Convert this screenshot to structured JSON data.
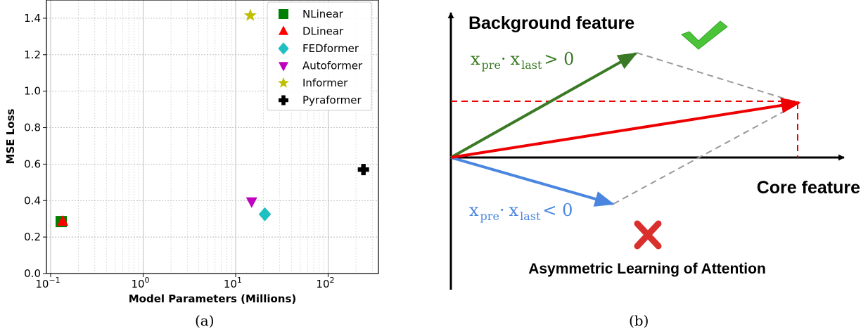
{
  "chart_data": [
    {
      "type": "scatter",
      "xlabel": "Model Parameters (Millions)",
      "ylabel": "MSE Loss",
      "x_scale": "log",
      "xlim": [
        0.09,
        350
      ],
      "ylim": [
        0.0,
        1.5
      ],
      "x_ticks": [
        0.1,
        1,
        10,
        100
      ],
      "x_tick_labels": [
        {
          "base": "10",
          "exp": "−1"
        },
        {
          "base": "10",
          "exp": "0"
        },
        {
          "base": "10",
          "exp": "1"
        },
        {
          "base": "10",
          "exp": "2"
        }
      ],
      "y_ticks": [
        0.0,
        0.2,
        0.4,
        0.6,
        0.8,
        1.0,
        1.2,
        1.4
      ],
      "y_tick_labels": [
        "0.0",
        "0.2",
        "0.4",
        "0.6",
        "0.8",
        "1.0",
        "1.2",
        "1.4"
      ],
      "grid": true,
      "legend_position": "top-right",
      "series": [
        {
          "name": "NLinear",
          "marker": "square",
          "color": "#008000",
          "points": [
            {
              "x": 0.13,
              "y": 0.285
            }
          ]
        },
        {
          "name": "DLinear",
          "marker": "triangle-up",
          "color": "#ff0000",
          "points": [
            {
              "x": 0.135,
              "y": 0.285
            }
          ]
        },
        {
          "name": "FEDformer",
          "marker": "diamond",
          "color": "#1ec1c1",
          "points": [
            {
              "x": 20.7,
              "y": 0.325
            }
          ]
        },
        {
          "name": "Autoformer",
          "marker": "triangle-down",
          "color": "#bf00bf",
          "points": [
            {
              "x": 14.9,
              "y": 0.395
            }
          ]
        },
        {
          "name": "Informer",
          "marker": "star",
          "color": "#bfbf00",
          "points": [
            {
              "x": 14.4,
              "y": 1.415
            }
          ]
        },
        {
          "name": "Pyraformer",
          "marker": "plus",
          "color": "#000000",
          "points": [
            {
              "x": 241,
              "y": 0.57
            }
          ]
        }
      ]
    },
    {
      "type": "diagram",
      "y_axis_label": "Background feature",
      "x_axis_label": "Core feature",
      "bottom_title": "Asymmetric Learning of Attention",
      "positive_label": {
        "a": "x",
        "a_sub": "pre",
        "b": "x",
        "b_sub": "last",
        "op": "> 0"
      },
      "negative_label": {
        "a": "x",
        "a_sub": "pre",
        "b": "x",
        "b_sub": "last",
        "op": "< 0"
      },
      "colors": {
        "positive": "#3a7a24",
        "negative": "#4a86e0",
        "result": "#ee0000",
        "check": "#4cc43a",
        "cross": "#d9302e"
      },
      "check_icon": "check-icon",
      "cross_icon": "cross-icon"
    }
  ],
  "captions": {
    "a": "(a)",
    "b": "(b)"
  }
}
